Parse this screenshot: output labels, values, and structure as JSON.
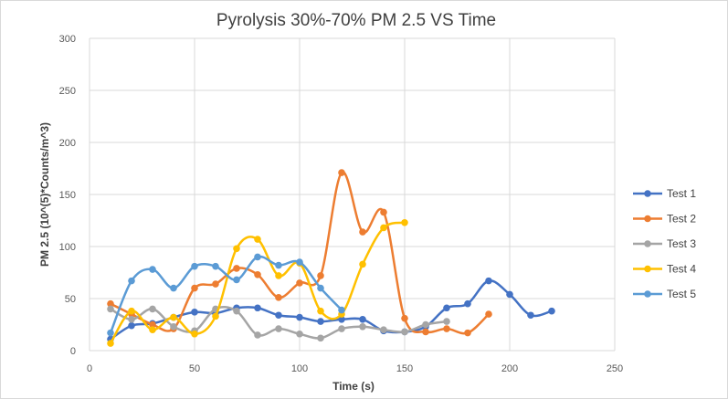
{
  "chart_data": {
    "type": "line",
    "title": "Pyrolysis 30%-70% PM 2.5 VS Time",
    "xlabel": "Time (s)",
    "ylabel": "PM 2.5 (10^(5)*Counts/m^3)",
    "xlim": [
      0,
      250
    ],
    "ylim": [
      0,
      300
    ],
    "xticks": [
      0,
      50,
      100,
      150,
      200,
      250
    ],
    "yticks": [
      0,
      50,
      100,
      150,
      200,
      250,
      300
    ],
    "grid": true,
    "legend_position": "right",
    "smooth": true,
    "series": [
      {
        "name": "Test 1",
        "color": "#4472C4",
        "points": [
          [
            10,
            11
          ],
          [
            20,
            24
          ],
          [
            30,
            26
          ],
          [
            40,
            32
          ],
          [
            50,
            37
          ],
          [
            60,
            36
          ],
          [
            70,
            41
          ],
          [
            80,
            41
          ],
          [
            90,
            34
          ],
          [
            100,
            32
          ],
          [
            110,
            28
          ],
          [
            120,
            30
          ],
          [
            130,
            30
          ],
          [
            140,
            19
          ],
          [
            150,
            18
          ],
          [
            160,
            23
          ],
          [
            170,
            41
          ],
          [
            180,
            45
          ],
          [
            190,
            67
          ],
          [
            200,
            54
          ],
          [
            210,
            34
          ],
          [
            220,
            38
          ]
        ]
      },
      {
        "name": "Test 2",
        "color": "#ED7D31",
        "points": [
          [
            10,
            45
          ],
          [
            20,
            35
          ],
          [
            30,
            25
          ],
          [
            40,
            21
          ],
          [
            50,
            60
          ],
          [
            60,
            64
          ],
          [
            70,
            79
          ],
          [
            80,
            73
          ],
          [
            90,
            51
          ],
          [
            100,
            65
          ],
          [
            110,
            72
          ],
          [
            120,
            171
          ],
          [
            130,
            114
          ],
          [
            140,
            133
          ],
          [
            150,
            31
          ],
          [
            160,
            18
          ],
          [
            170,
            21
          ],
          [
            180,
            17
          ],
          [
            190,
            35
          ]
        ]
      },
      {
        "name": "Test 3",
        "color": "#A5A5A5",
        "points": [
          [
            10,
            40
          ],
          [
            20,
            30
          ],
          [
            30,
            40
          ],
          [
            40,
            23
          ],
          [
            50,
            19
          ],
          [
            60,
            40
          ],
          [
            70,
            38
          ],
          [
            80,
            15
          ],
          [
            90,
            21
          ],
          [
            100,
            16
          ],
          [
            110,
            12
          ],
          [
            120,
            21
          ],
          [
            130,
            23
          ],
          [
            140,
            20
          ],
          [
            150,
            18
          ],
          [
            160,
            25
          ],
          [
            170,
            28
          ]
        ]
      },
      {
        "name": "Test 4",
        "color": "#FFC000",
        "points": [
          [
            10,
            7
          ],
          [
            20,
            38
          ],
          [
            30,
            20
          ],
          [
            40,
            32
          ],
          [
            50,
            16
          ],
          [
            60,
            33
          ],
          [
            70,
            98
          ],
          [
            80,
            107
          ],
          [
            90,
            72
          ],
          [
            100,
            84
          ],
          [
            110,
            38
          ],
          [
            120,
            35
          ],
          [
            130,
            83
          ],
          [
            140,
            118
          ],
          [
            150,
            123
          ]
        ]
      },
      {
        "name": "Test 5",
        "color": "#5B9BD5",
        "points": [
          [
            10,
            17
          ],
          [
            20,
            67
          ],
          [
            30,
            78
          ],
          [
            40,
            60
          ],
          [
            50,
            81
          ],
          [
            60,
            81
          ],
          [
            70,
            68
          ],
          [
            80,
            90
          ],
          [
            90,
            82
          ],
          [
            100,
            85
          ],
          [
            110,
            60
          ],
          [
            120,
            39
          ]
        ]
      }
    ]
  },
  "colors": {
    "grid": "#d9d9d9",
    "background": "#ffffff"
  }
}
